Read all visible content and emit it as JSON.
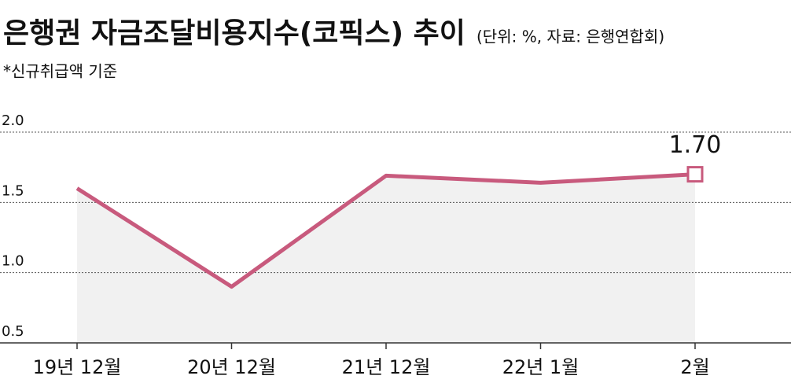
{
  "chart_data": {
    "type": "line",
    "title": "은행권 자금조달비용지수(코픽스) 추이",
    "subtitle": "(단위: %, 자료: 은행연합회)",
    "annotations": [
      "*신규취급액 기준"
    ],
    "categories": [
      "19년 12월",
      "20년 12월",
      "21년 12월",
      "22년 1월",
      "2월"
    ],
    "series": [
      {
        "name": "코픽스",
        "color": "#c85a7d",
        "values": [
          1.6,
          0.9,
          1.69,
          1.64,
          1.7
        ],
        "value_labels": [
          null,
          null,
          null,
          null,
          "1.70"
        ]
      }
    ],
    "area_color": "#f1f1f1",
    "ylim": [
      0.5,
      2.0
    ],
    "yticks": [
      0.5,
      {
        "value": 1,
        "label": "1.0"
      },
      1.5,
      {
        "value": 2,
        "label": "2.0"
      }
    ],
    "grid": true
  }
}
